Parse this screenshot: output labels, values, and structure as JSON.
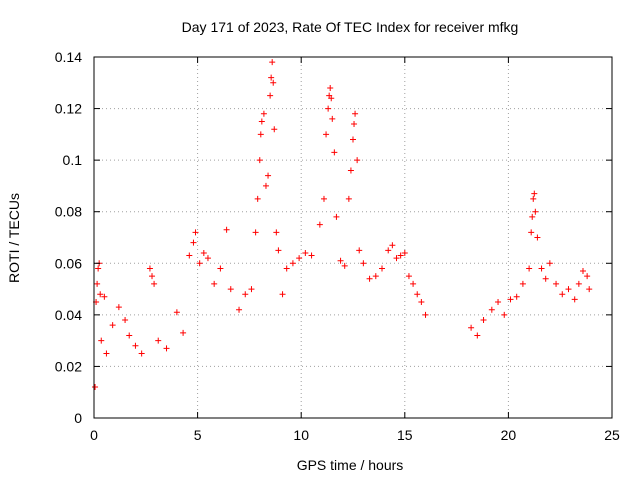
{
  "chart_data": {
    "type": "scatter",
    "title": "Day 171 of 2023, Rate Of TEC Index for receiver mfkg",
    "xlabel": "GPS time / hours",
    "ylabel": "ROTI / TECUs",
    "xlim": [
      0,
      25
    ],
    "ylim": [
      0,
      0.14
    ],
    "x_ticks": [
      "0",
      "5",
      "10",
      "15",
      "20",
      "25"
    ],
    "x_tick_values": [
      0,
      5,
      10,
      15,
      20,
      25
    ],
    "y_ticks": [
      "0",
      "0.02",
      "0.04",
      "0.06",
      "0.08",
      "0.1",
      "0.12",
      "0.14"
    ],
    "y_tick_values": [
      0,
      0.02,
      0.04,
      0.06,
      0.08,
      0.1,
      0.12,
      0.14
    ],
    "grid": true,
    "marker": "plus",
    "color": "#ff0000",
    "data_gap": [
      16.1,
      18.1
    ],
    "series": [
      {
        "name": "ROTI",
        "points": [
          [
            0.05,
            0.012
          ],
          [
            0.1,
            0.045
          ],
          [
            0.15,
            0.052
          ],
          [
            0.2,
            0.058
          ],
          [
            0.25,
            0.06
          ],
          [
            0.3,
            0.048
          ],
          [
            0.35,
            0.03
          ],
          [
            0.5,
            0.047
          ],
          [
            0.6,
            0.025
          ],
          [
            0.9,
            0.036
          ],
          [
            1.2,
            0.043
          ],
          [
            1.5,
            0.038
          ],
          [
            1.7,
            0.032
          ],
          [
            2.0,
            0.028
          ],
          [
            2.3,
            0.025
          ],
          [
            2.7,
            0.058
          ],
          [
            2.8,
            0.055
          ],
          [
            2.9,
            0.052
          ],
          [
            3.1,
            0.03
          ],
          [
            3.5,
            0.027
          ],
          [
            4.0,
            0.041
          ],
          [
            4.3,
            0.033
          ],
          [
            4.6,
            0.063
          ],
          [
            4.8,
            0.068
          ],
          [
            4.9,
            0.072
          ],
          [
            5.1,
            0.06
          ],
          [
            5.3,
            0.064
          ],
          [
            5.5,
            0.062
          ],
          [
            5.8,
            0.052
          ],
          [
            6.1,
            0.058
          ],
          [
            6.4,
            0.073
          ],
          [
            6.6,
            0.05
          ],
          [
            7.0,
            0.042
          ],
          [
            7.3,
            0.048
          ],
          [
            7.6,
            0.05
          ],
          [
            7.8,
            0.072
          ],
          [
            7.9,
            0.085
          ],
          [
            8.0,
            0.1
          ],
          [
            8.05,
            0.11
          ],
          [
            8.1,
            0.115
          ],
          [
            8.2,
            0.118
          ],
          [
            8.3,
            0.09
          ],
          [
            8.4,
            0.094
          ],
          [
            8.5,
            0.125
          ],
          [
            8.55,
            0.132
          ],
          [
            8.6,
            0.138
          ],
          [
            8.65,
            0.13
          ],
          [
            8.7,
            0.112
          ],
          [
            8.8,
            0.072
          ],
          [
            8.9,
            0.065
          ],
          [
            9.1,
            0.048
          ],
          [
            9.3,
            0.058
          ],
          [
            9.6,
            0.06
          ],
          [
            9.9,
            0.062
          ],
          [
            10.2,
            0.064
          ],
          [
            10.5,
            0.063
          ],
          [
            10.9,
            0.075
          ],
          [
            11.1,
            0.085
          ],
          [
            11.2,
            0.11
          ],
          [
            11.3,
            0.12
          ],
          [
            11.35,
            0.125
          ],
          [
            11.4,
            0.128
          ],
          [
            11.45,
            0.124
          ],
          [
            11.5,
            0.116
          ],
          [
            11.6,
            0.103
          ],
          [
            11.7,
            0.078
          ],
          [
            11.9,
            0.061
          ],
          [
            12.1,
            0.059
          ],
          [
            12.3,
            0.085
          ],
          [
            12.4,
            0.096
          ],
          [
            12.5,
            0.108
          ],
          [
            12.55,
            0.114
          ],
          [
            12.6,
            0.118
          ],
          [
            12.7,
            0.1
          ],
          [
            12.8,
            0.065
          ],
          [
            13.0,
            0.06
          ],
          [
            13.3,
            0.054
          ],
          [
            13.6,
            0.055
          ],
          [
            13.9,
            0.058
          ],
          [
            14.2,
            0.065
          ],
          [
            14.4,
            0.067
          ],
          [
            14.6,
            0.062
          ],
          [
            14.8,
            0.063
          ],
          [
            15.0,
            0.064
          ],
          [
            15.2,
            0.055
          ],
          [
            15.4,
            0.052
          ],
          [
            15.6,
            0.048
          ],
          [
            15.8,
            0.045
          ],
          [
            16.0,
            0.04
          ],
          [
            18.2,
            0.035
          ],
          [
            18.5,
            0.032
          ],
          [
            18.8,
            0.038
          ],
          [
            19.2,
            0.042
          ],
          [
            19.5,
            0.045
          ],
          [
            19.8,
            0.04
          ],
          [
            20.1,
            0.046
          ],
          [
            20.4,
            0.047
          ],
          [
            20.7,
            0.052
          ],
          [
            21.0,
            0.058
          ],
          [
            21.1,
            0.072
          ],
          [
            21.15,
            0.078
          ],
          [
            21.2,
            0.085
          ],
          [
            21.25,
            0.087
          ],
          [
            21.3,
            0.08
          ],
          [
            21.4,
            0.07
          ],
          [
            21.6,
            0.058
          ],
          [
            21.8,
            0.054
          ],
          [
            22.0,
            0.06
          ],
          [
            22.3,
            0.052
          ],
          [
            22.6,
            0.048
          ],
          [
            22.9,
            0.05
          ],
          [
            23.2,
            0.046
          ],
          [
            23.4,
            0.052
          ],
          [
            23.6,
            0.057
          ],
          [
            23.8,
            0.055
          ],
          [
            23.9,
            0.05
          ]
        ]
      }
    ]
  }
}
